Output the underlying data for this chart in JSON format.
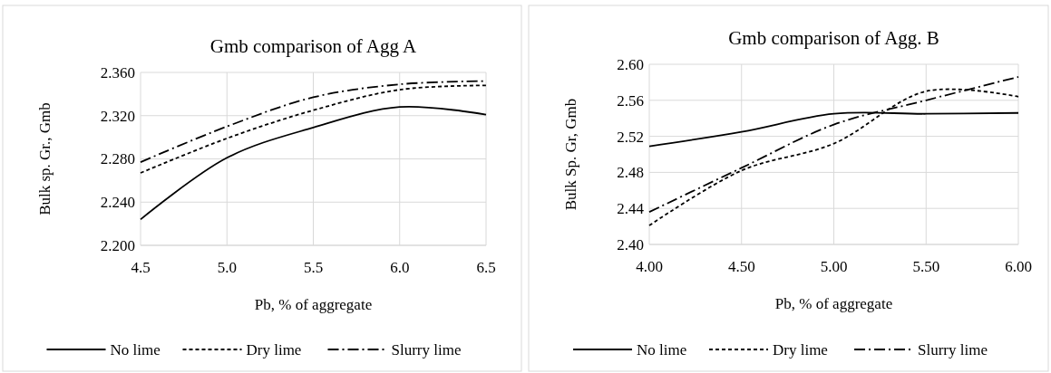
{
  "chart_data": [
    {
      "type": "line",
      "title": "Gmb comparison of  Agg A",
      "xlabel": "Pb, % of aggregate",
      "ylabel": "Bulk sp. Gr., Gmb",
      "x": [
        4.5,
        5.0,
        5.5,
        6.0,
        6.5
      ],
      "series": [
        {
          "name": "No lime",
          "color": "#000000",
          "line_style": "solid",
          "values": [
            2.224,
            2.281,
            2.309,
            2.328,
            2.321
          ]
        },
        {
          "name": "Dry lime",
          "color": "#000000",
          "line_style": "dashed",
          "values": [
            2.267,
            2.299,
            2.325,
            2.344,
            2.348
          ]
        },
        {
          "name": "Slurry lime",
          "color": "#000000",
          "line_style": "dashdot",
          "values": [
            2.277,
            2.31,
            2.337,
            2.349,
            2.352
          ]
        }
      ],
      "xlim": [
        4.5,
        6.5
      ],
      "xticks": [
        {
          "value": 4.5,
          "label": "4.5"
        },
        {
          "value": 5.0,
          "label": "5.0"
        },
        {
          "value": 5.5,
          "label": "5.5"
        },
        {
          "value": 6.0,
          "label": "6.0"
        },
        {
          "value": 6.5,
          "label": "6.5"
        }
      ],
      "ylim": [
        2.2,
        2.36
      ],
      "yticks": [
        {
          "value": 2.2,
          "label": "2.200"
        },
        {
          "value": 2.24,
          "label": "2.240"
        },
        {
          "value": 2.28,
          "label": "2.280"
        },
        {
          "value": 2.32,
          "label": "2.320"
        },
        {
          "value": 2.36,
          "label": "2.360"
        }
      ],
      "grid": true,
      "legend": "bottom",
      "marker": "none"
    },
    {
      "type": "line",
      "title": "Gmb comparison of  Agg. B",
      "xlabel": "Pb, % of aggregate",
      "ylabel": "Bulk Sp. Gr, Gmb",
      "x": [
        4.0,
        4.5,
        5.0,
        5.5,
        6.0
      ],
      "series": [
        {
          "name": "No lime",
          "color": "#000000",
          "line_style": "solid",
          "values": [
            2.509,
            2.525,
            2.545,
            2.545,
            2.546
          ]
        },
        {
          "name": "Dry lime",
          "color": "#000000",
          "line_style": "dashed",
          "values": [
            2.421,
            2.482,
            2.512,
            2.57,
            2.564
          ]
        },
        {
          "name": "Slurry lime",
          "color": "#000000",
          "line_style": "dashdot",
          "values": [
            2.436,
            2.485,
            2.533,
            2.56,
            2.586
          ]
        }
      ],
      "xlim": [
        4.0,
        6.0
      ],
      "xticks": [
        {
          "value": 4.0,
          "label": "4.00"
        },
        {
          "value": 4.5,
          "label": "4.50"
        },
        {
          "value": 5.0,
          "label": "5.00"
        },
        {
          "value": 5.5,
          "label": "5.50"
        },
        {
          "value": 6.0,
          "label": "6.00"
        }
      ],
      "ylim": [
        2.4,
        2.6
      ],
      "yticks": [
        {
          "value": 2.4,
          "label": "2.40"
        },
        {
          "value": 2.44,
          "label": "2.44"
        },
        {
          "value": 2.48,
          "label": "2.48"
        },
        {
          "value": 2.52,
          "label": "2.52"
        },
        {
          "value": 2.56,
          "label": "2.56"
        },
        {
          "value": 2.6,
          "label": "2.60"
        }
      ],
      "grid": true,
      "legend": "bottom",
      "marker": "none"
    }
  ]
}
